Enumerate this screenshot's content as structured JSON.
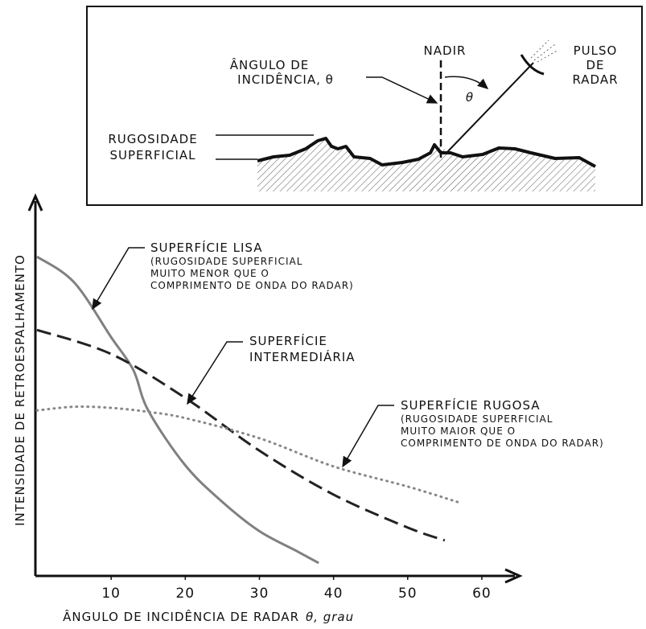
{
  "diagram": {
    "nadir": "NADIR",
    "pulse": [
      "PULSO",
      "DE",
      "RADAR"
    ],
    "incidence": [
      "ÂNGULO DE",
      "INCIDÊNCIA, θ"
    ],
    "theta": "θ",
    "roughness": [
      "RUGOSIDADE",
      "SUPERFICIAL"
    ]
  },
  "chart_data": {
    "type": "line",
    "x_label": "ÂNGULO DE INCIDÊNCIA DE RADAR",
    "x_label_unit": "θ, grau",
    "y_label": "INTENSIDADE DE RETROESPALHAMENTO",
    "xlim": [
      0,
      65
    ],
    "xticks": [
      10,
      20,
      30,
      40,
      50,
      60
    ],
    "ylim": [
      0,
      100
    ],
    "series": [
      {
        "style": "solid",
        "color": "#808080",
        "x": [
          0,
          5,
          10,
          13,
          15,
          20,
          25,
          30,
          35,
          38
        ],
        "values": [
          87,
          80,
          65,
          56,
          45,
          30,
          20,
          12,
          6.6,
          3.3
        ]
      },
      {
        "style": "dashed",
        "color": "#222222",
        "x": [
          0,
          10,
          20,
          30,
          40,
          50,
          55
        ],
        "values": [
          67,
          60.4,
          48.4,
          34,
          22,
          13,
          9.5
        ]
      },
      {
        "style": "dotted",
        "color": "#888888",
        "x": [
          0,
          5,
          10,
          15,
          20,
          30,
          40,
          50,
          57
        ],
        "values": [
          45,
          46,
          45.7,
          44.6,
          42.9,
          37.4,
          29.7,
          24.2,
          19.8
        ]
      }
    ],
    "annotations": [
      {
        "title": "SUPERFÍCIE LISA",
        "lines": [
          "(RUGOSIDADE SUPERFICIAL",
          "MUITO MENOR QUE O",
          "COMPRIMENTO DE ONDA DO RADAR)"
        ]
      },
      {
        "title": "SUPERFÍCIE",
        "lines": [
          "INTERMEDIÁRIA"
        ]
      },
      {
        "title": "SUPERFÍCIE RUGOSA",
        "lines": [
          "(RUGOSIDADE SUPERFICIAL",
          "MUITO MAIOR QUE O",
          "COMPRIMENTO DE ONDA DO RADAR)"
        ]
      }
    ]
  }
}
